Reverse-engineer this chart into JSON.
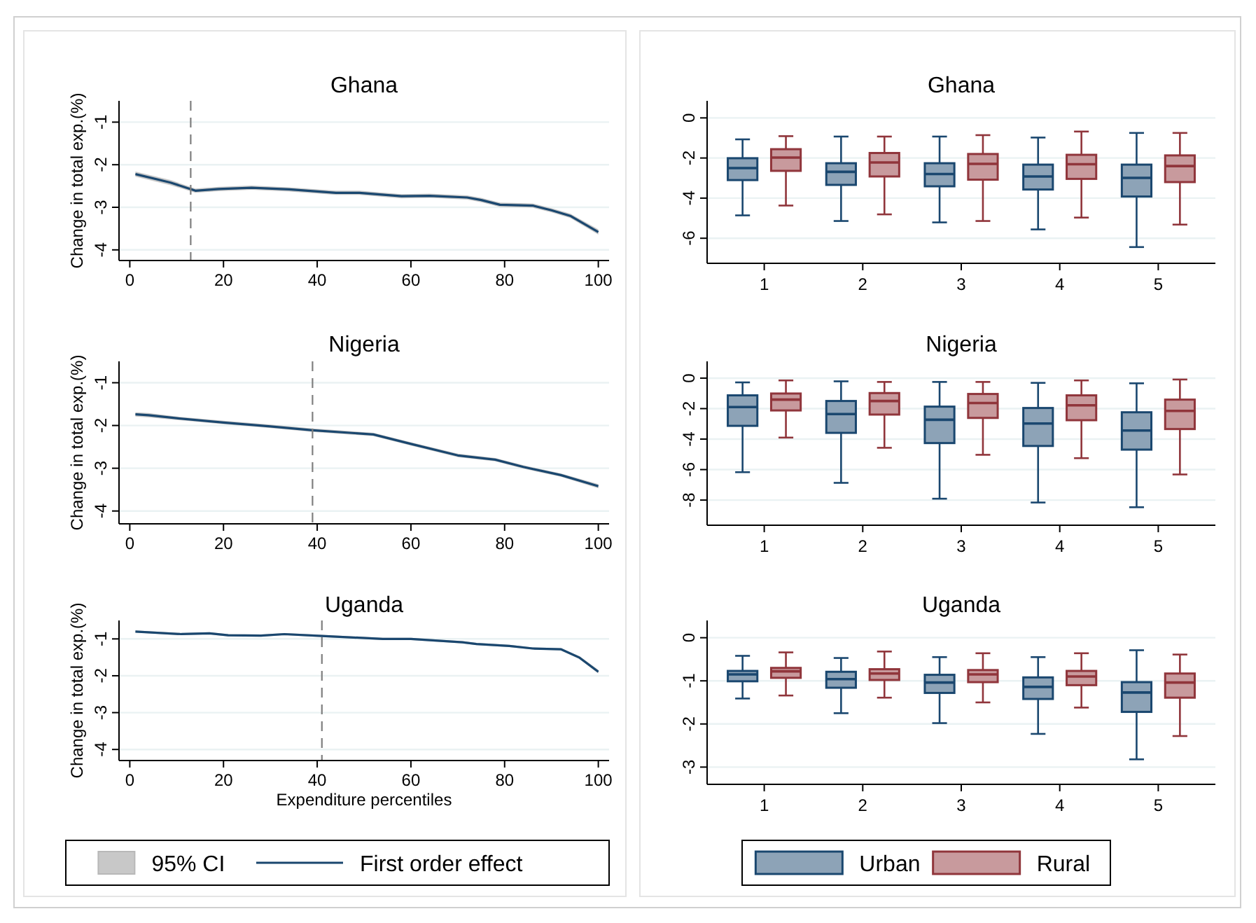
{
  "chart_data": [
    {
      "type": "line",
      "title": "Ghana",
      "ylabel": "Change in total exp.(%)",
      "xlim": [
        -2.3,
        102.3
      ],
      "ylim": [
        -4.25,
        -0.5
      ],
      "xticks": [
        0,
        20,
        40,
        60,
        80,
        100
      ],
      "yticks": [
        -1,
        -2,
        -3,
        -4
      ],
      "grid": "y",
      "series": [
        {
          "color": "#1a476f",
          "x": [
            1.2,
            8.7,
            14,
            19,
            26,
            34,
            44,
            49,
            58,
            64,
            72,
            75,
            79,
            86,
            90,
            94,
            100
          ],
          "values": [
            -2.22,
            -2.42,
            -2.61,
            -2.57,
            -2.54,
            -2.58,
            -2.66,
            -2.66,
            -2.74,
            -2.73,
            -2.77,
            -2.83,
            -2.94,
            -2.96,
            -3.07,
            -3.2,
            -3.58
          ],
          "upper": [
            -2.16,
            -2.36,
            -2.56,
            -2.52,
            -2.49,
            -2.53,
            -2.61,
            -2.61,
            -2.69,
            -2.68,
            -2.72,
            -2.78,
            -2.89,
            -2.91,
            -3.02,
            -3.15,
            -3.52
          ],
          "lower": [
            -2.28,
            -2.48,
            -2.66,
            -2.62,
            -2.59,
            -2.63,
            -2.71,
            -2.71,
            -2.79,
            -2.78,
            -2.82,
            -2.88,
            -2.99,
            -3.01,
            -3.12,
            -3.25,
            -3.64
          ]
        }
      ],
      "ref_lines": [
        {
          "axis": "x",
          "value": 13,
          "color": "#7f7f7f",
          "line_style": "dashed"
        }
      ]
    },
    {
      "type": "box",
      "title": "Ghana",
      "categories": [
        "1",
        "2",
        "3",
        "4",
        "5"
      ],
      "ylim": [
        -7.25,
        0.85
      ],
      "yticks": [
        0,
        -2,
        -4,
        -6
      ],
      "grid": "y",
      "series": [
        {
          "color": "#1a476f",
          "boxes": [
            {
              "low": -4.86,
              "q1": -3.1,
              "median": -2.5,
              "q3": -2.01,
              "high": -1.07
            },
            {
              "low": -5.14,
              "q1": -3.34,
              "median": -2.69,
              "q3": -2.26,
              "high": -0.93
            },
            {
              "low": -5.21,
              "q1": -3.41,
              "median": -2.8,
              "q3": -2.26,
              "high": -0.93
            },
            {
              "low": -5.56,
              "q1": -3.57,
              "median": -2.92,
              "q3": -2.33,
              "high": -0.98
            },
            {
              "low": -6.44,
              "q1": -3.92,
              "median": -2.99,
              "q3": -2.33,
              "high": -0.75
            }
          ]
        },
        {
          "color": "#90353b",
          "boxes": [
            {
              "low": -4.37,
              "q1": -2.64,
              "median": -1.98,
              "q3": -1.56,
              "high": -0.91
            },
            {
              "low": -4.81,
              "q1": -2.92,
              "median": -2.22,
              "q3": -1.75,
              "high": -0.93
            },
            {
              "low": -5.14,
              "q1": -3.08,
              "median": -2.29,
              "q3": -1.8,
              "high": -0.86
            },
            {
              "low": -4.97,
              "q1": -3.04,
              "median": -2.31,
              "q3": -1.84,
              "high": -0.68
            },
            {
              "low": -5.32,
              "q1": -3.2,
              "median": -2.4,
              "q3": -1.87,
              "high": -0.75
            }
          ]
        }
      ]
    },
    {
      "type": "line",
      "title": "Nigeria",
      "ylabel": "Change in total exp.(%)",
      "xlim": [
        -2.3,
        102.3
      ],
      "ylim": [
        -4.3,
        -0.5
      ],
      "xticks": [
        0,
        20,
        40,
        60,
        80,
        100
      ],
      "yticks": [
        -1,
        -2,
        -3,
        -4
      ],
      "grid": "y",
      "series": [
        {
          "color": "#1a476f",
          "x": [
            1.2,
            4,
            10,
            20,
            30,
            39,
            52,
            60,
            70,
            78,
            84,
            92,
            100
          ],
          "values": [
            -1.74,
            -1.76,
            -1.83,
            -1.93,
            -2.02,
            -2.11,
            -2.21,
            -2.43,
            -2.7,
            -2.8,
            -2.97,
            -3.16,
            -3.42
          ],
          "upper": [
            -1.69,
            -1.71,
            -1.79,
            -1.89,
            -1.98,
            -2.07,
            -2.17,
            -2.39,
            -2.66,
            -2.76,
            -2.93,
            -3.12,
            -3.37
          ],
          "lower": [
            -1.79,
            -1.81,
            -1.87,
            -1.97,
            -2.06,
            -2.15,
            -2.25,
            -2.47,
            -2.74,
            -2.84,
            -3.01,
            -3.2,
            -3.47
          ]
        }
      ],
      "ref_lines": [
        {
          "axis": "x",
          "value": 39,
          "color": "#7f7f7f",
          "line_style": "dashed"
        }
      ]
    },
    {
      "type": "box",
      "title": "Nigeria",
      "categories": [
        "1",
        "2",
        "3",
        "4",
        "5"
      ],
      "ylim": [
        -9.65,
        1.1
      ],
      "yticks": [
        0,
        -2,
        -4,
        -6,
        -8
      ],
      "grid": "y",
      "series": [
        {
          "color": "#1a476f",
          "boxes": [
            {
              "low": -6.17,
              "q1": -3.13,
              "median": -1.9,
              "q3": -1.13,
              "high": -0.28
            },
            {
              "low": -6.87,
              "q1": -3.59,
              "median": -2.36,
              "q3": -1.5,
              "high": -0.21
            },
            {
              "low": -7.91,
              "q1": -4.26,
              "median": -2.73,
              "q3": -1.87,
              "high": -0.25
            },
            {
              "low": -8.16,
              "q1": -4.45,
              "median": -2.98,
              "q3": -1.96,
              "high": -0.31
            },
            {
              "low": -8.47,
              "q1": -4.69,
              "median": -3.44,
              "q3": -2.24,
              "high": -0.34
            }
          ]
        },
        {
          "color": "#90353b",
          "boxes": [
            {
              "low": -3.9,
              "q1": -2.12,
              "median": -1.41,
              "q3": -1.01,
              "high": -0.15
            },
            {
              "low": -4.57,
              "q1": -2.39,
              "median": -1.5,
              "q3": -0.98,
              "high": -0.25
            },
            {
              "low": -5.03,
              "q1": -2.61,
              "median": -1.63,
              "q3": -1.04,
              "high": -0.25
            },
            {
              "low": -5.25,
              "q1": -2.76,
              "median": -1.78,
              "q3": -1.13,
              "high": -0.15
            },
            {
              "low": -6.32,
              "q1": -3.34,
              "median": -2.15,
              "q3": -1.41,
              "high": -0.09
            }
          ]
        }
      ]
    },
    {
      "type": "line",
      "title": "Uganda",
      "xlabel": "Expenditure percentiles",
      "ylabel": "Change in total exp.(%)",
      "xlim": [
        -2.3,
        102.3
      ],
      "ylim": [
        -4.3,
        -0.5
      ],
      "xticks": [
        0,
        20,
        40,
        60,
        80,
        100
      ],
      "yticks": [
        -1,
        -2,
        -3,
        -4
      ],
      "grid": "y",
      "legend": "bottom",
      "annotations": [
        "95% CI"
      ],
      "series": [
        {
          "name": "First order effect",
          "color": "#1a476f",
          "x": [
            1.2,
            11,
            17,
            21,
            28,
            33,
            41,
            54,
            60,
            71,
            74,
            81,
            86,
            92,
            96,
            100
          ],
          "values": [
            -0.8,
            -0.87,
            -0.85,
            -0.9,
            -0.91,
            -0.87,
            -0.92,
            -1.0,
            -1.0,
            -1.09,
            -1.14,
            -1.19,
            -1.26,
            -1.28,
            -1.51,
            -1.89
          ],
          "upper": [
            -0.77,
            -0.84,
            -0.82,
            -0.87,
            -0.88,
            -0.84,
            -0.89,
            -0.97,
            -0.97,
            -1.06,
            -1.11,
            -1.16,
            -1.23,
            -1.25,
            -1.47,
            -1.84
          ],
          "lower": [
            -0.83,
            -0.9,
            -0.88,
            -0.93,
            -0.94,
            -0.9,
            -0.95,
            -1.03,
            -1.03,
            -1.12,
            -1.17,
            -1.22,
            -1.29,
            -1.31,
            -1.55,
            -1.94
          ]
        }
      ],
      "ref_lines": [
        {
          "axis": "x",
          "value": 41,
          "color": "#7f7f7f",
          "line_style": "dashed"
        }
      ]
    },
    {
      "type": "box",
      "title": "Uganda",
      "categories": [
        "1",
        "2",
        "3",
        "4",
        "5"
      ],
      "ylim": [
        -3.4,
        0.4
      ],
      "yticks": [
        0,
        -1,
        -2,
        -3
      ],
      "grid": "y",
      "legend": "bottom",
      "series": [
        {
          "name": "Urban",
          "color": "#1a476f",
          "boxes": [
            {
              "low": -1.41,
              "q1": -1.01,
              "median": -0.85,
              "q3": -0.77,
              "high": -0.42
            },
            {
              "low": -1.75,
              "q1": -1.16,
              "median": -0.96,
              "q3": -0.79,
              "high": -0.47
            },
            {
              "low": -1.98,
              "q1": -1.28,
              "median": -1.04,
              "q3": -0.86,
              "high": -0.45
            },
            {
              "low": -2.23,
              "q1": -1.42,
              "median": -1.14,
              "q3": -0.92,
              "high": -0.45
            },
            {
              "low": -2.82,
              "q1": -1.72,
              "median": -1.27,
              "q3": -1.03,
              "high": -0.29
            }
          ]
        },
        {
          "name": "Rural",
          "color": "#90353b",
          "boxes": [
            {
              "low": -1.34,
              "q1": -0.93,
              "median": -0.78,
              "q3": -0.7,
              "high": -0.34
            },
            {
              "low": -1.39,
              "q1": -0.98,
              "median": -0.83,
              "q3": -0.73,
              "high": -0.32
            },
            {
              "low": -1.5,
              "q1": -1.03,
              "median": -0.85,
              "q3": -0.75,
              "high": -0.36
            },
            {
              "low": -1.62,
              "q1": -1.1,
              "median": -0.9,
              "q3": -0.77,
              "high": -0.36
            },
            {
              "low": -2.28,
              "q1": -1.39,
              "median": -1.04,
              "q3": -0.83,
              "high": -0.39
            }
          ]
        }
      ]
    }
  ]
}
